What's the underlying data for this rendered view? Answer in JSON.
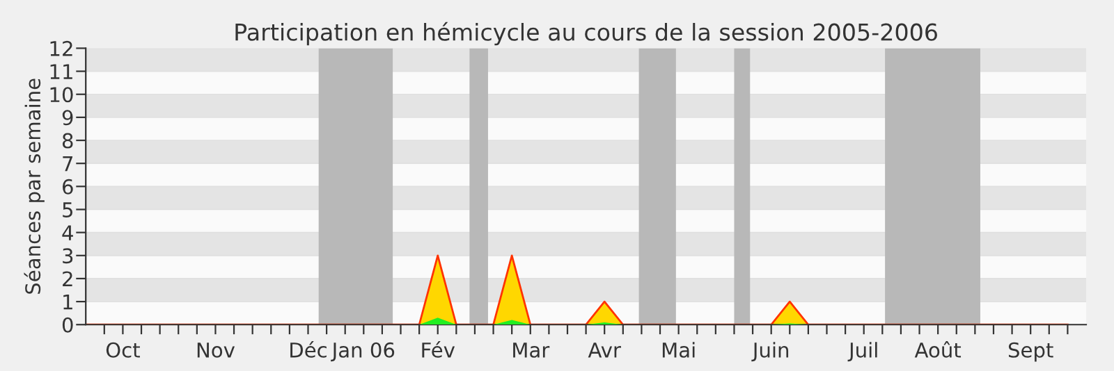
{
  "chart_data": {
    "type": "area",
    "title": "Participation en hémicycle au cours de la session 2005-2006",
    "ylabel": "Séances par semaine",
    "x": [
      "2005-09-19",
      "2005-09-26",
      "2005-10-03",
      "2005-10-10",
      "2005-10-17",
      "2005-10-24",
      "2005-10-31",
      "2005-11-07",
      "2005-11-14",
      "2005-11-21",
      "2005-11-28",
      "2005-12-05",
      "2005-12-12",
      "2005-12-19",
      "2005-12-26",
      "2006-01-02",
      "2006-01-09",
      "2006-01-16",
      "2006-01-23",
      "2006-01-30",
      "2006-02-06",
      "2006-02-13",
      "2006-02-20",
      "2006-02-27",
      "2006-03-06",
      "2006-03-13",
      "2006-03-20",
      "2006-03-27",
      "2006-04-03",
      "2006-04-10",
      "2006-04-17",
      "2006-04-24",
      "2006-05-01",
      "2006-05-08",
      "2006-05-15",
      "2006-05-22",
      "2006-05-29",
      "2006-06-05",
      "2006-06-12",
      "2006-06-19",
      "2006-06-26",
      "2006-07-03",
      "2006-07-10",
      "2006-07-17",
      "2006-07-24",
      "2006-07-31",
      "2006-08-07",
      "2006-08-14",
      "2006-08-21",
      "2006-08-28",
      "2006-09-04",
      "2006-09-11",
      "2006-09-18",
      "2006-09-25"
    ],
    "series": [
      {
        "color": "#ffd700",
        "values": [
          0,
          0,
          0,
          0,
          0,
          0,
          0,
          0,
          0,
          0,
          0,
          0,
          0,
          0,
          0,
          0,
          0,
          0,
          0,
          3,
          0,
          0,
          0,
          3,
          0,
          0,
          0,
          0,
          1,
          0,
          0,
          0,
          0,
          0,
          0,
          0,
          0,
          0,
          1,
          0,
          0,
          0,
          0,
          0,
          0,
          0,
          0,
          0,
          0,
          0,
          0,
          0,
          0,
          0
        ]
      },
      {
        "color": "#22ee22",
        "values": [
          0,
          0,
          0,
          0,
          0,
          0,
          0,
          0,
          0,
          0,
          0,
          0,
          0,
          0,
          0,
          0,
          0,
          0,
          0,
          0.3,
          0,
          0,
          0,
          0.2,
          0,
          0,
          0,
          0,
          0.1,
          0,
          0,
          0,
          0,
          0,
          0,
          0,
          0,
          0,
          0.05,
          0,
          0,
          0,
          0,
          0,
          0,
          0,
          0,
          0,
          0,
          0,
          0,
          0,
          0,
          0
        ]
      }
    ],
    "xlim": [
      "2005-09-19",
      "2006-10-02"
    ],
    "ylim": [
      0,
      12
    ],
    "yticks": [
      0,
      1,
      2,
      3,
      4,
      5,
      6,
      7,
      8,
      9,
      10,
      11,
      12
    ],
    "xticks": [
      {
        "value": "2005-09-26",
        "label": null
      },
      {
        "value": "2005-10-03",
        "label": "Oct"
      },
      {
        "value": "2005-10-10",
        "label": null
      },
      {
        "value": "2005-10-17",
        "label": null
      },
      {
        "value": "2005-10-24",
        "label": null
      },
      {
        "value": "2005-10-31",
        "label": null
      },
      {
        "value": "2005-11-07",
        "label": "Nov"
      },
      {
        "value": "2005-11-14",
        "label": null
      },
      {
        "value": "2005-11-21",
        "label": null
      },
      {
        "value": "2005-11-28",
        "label": null
      },
      {
        "value": "2005-12-05",
        "label": null
      },
      {
        "value": "2005-12-12",
        "label": "Déc"
      },
      {
        "value": "2005-12-19",
        "label": null
      },
      {
        "value": "2005-12-26",
        "label": null
      },
      {
        "value": "2006-01-02",
        "label": "Jan 06"
      },
      {
        "value": "2006-01-09",
        "label": null
      },
      {
        "value": "2006-01-16",
        "label": null
      },
      {
        "value": "2006-01-23",
        "label": null
      },
      {
        "value": "2006-01-30",
        "label": "Fév"
      },
      {
        "value": "2006-02-06",
        "label": null
      },
      {
        "value": "2006-02-13",
        "label": null
      },
      {
        "value": "2006-02-20",
        "label": null
      },
      {
        "value": "2006-02-27",
        "label": null
      },
      {
        "value": "2006-03-06",
        "label": "Mar"
      },
      {
        "value": "2006-03-13",
        "label": null
      },
      {
        "value": "2006-03-20",
        "label": null
      },
      {
        "value": "2006-03-27",
        "label": null
      },
      {
        "value": "2006-04-03",
        "label": "Avr"
      },
      {
        "value": "2006-04-10",
        "label": null
      },
      {
        "value": "2006-04-17",
        "label": null
      },
      {
        "value": "2006-04-24",
        "label": null
      },
      {
        "value": "2006-05-01",
        "label": "Mai"
      },
      {
        "value": "2006-05-08",
        "label": null
      },
      {
        "value": "2006-05-15",
        "label": null
      },
      {
        "value": "2006-05-22",
        "label": null
      },
      {
        "value": "2006-05-29",
        "label": null
      },
      {
        "value": "2006-06-05",
        "label": "Juin"
      },
      {
        "value": "2006-06-12",
        "label": null
      },
      {
        "value": "2006-06-19",
        "label": null
      },
      {
        "value": "2006-06-26",
        "label": null
      },
      {
        "value": "2006-07-03",
        "label": null
      },
      {
        "value": "2006-07-10",
        "label": "Juil"
      },
      {
        "value": "2006-07-17",
        "label": null
      },
      {
        "value": "2006-07-24",
        "label": null
      },
      {
        "value": "2006-07-31",
        "label": null
      },
      {
        "value": "2006-08-07",
        "label": "Août"
      },
      {
        "value": "2006-08-14",
        "label": null
      },
      {
        "value": "2006-08-21",
        "label": null
      },
      {
        "value": "2006-08-28",
        "label": null
      },
      {
        "value": "2006-09-04",
        "label": null
      },
      {
        "value": "2006-09-11",
        "label": "Sept"
      },
      {
        "value": "2006-09-18",
        "label": null
      },
      {
        "value": "2006-09-25",
        "label": null
      }
    ],
    "bands": [
      {
        "axis": "x",
        "from": "2005-12-16",
        "to": "2006-01-13",
        "color": "#b8b8b8"
      },
      {
        "axis": "x",
        "from": "2006-02-11",
        "to": "2006-02-18",
        "color": "#b8b8b8"
      },
      {
        "axis": "x",
        "from": "2006-04-16",
        "to": "2006-04-30",
        "color": "#b8b8b8"
      },
      {
        "axis": "x",
        "from": "2006-05-22",
        "to": "2006-05-28",
        "color": "#b8b8b8"
      },
      {
        "axis": "x",
        "from": "2006-07-18",
        "to": "2006-08-23",
        "color": "#b8b8b8"
      }
    ],
    "grid": "y"
  }
}
